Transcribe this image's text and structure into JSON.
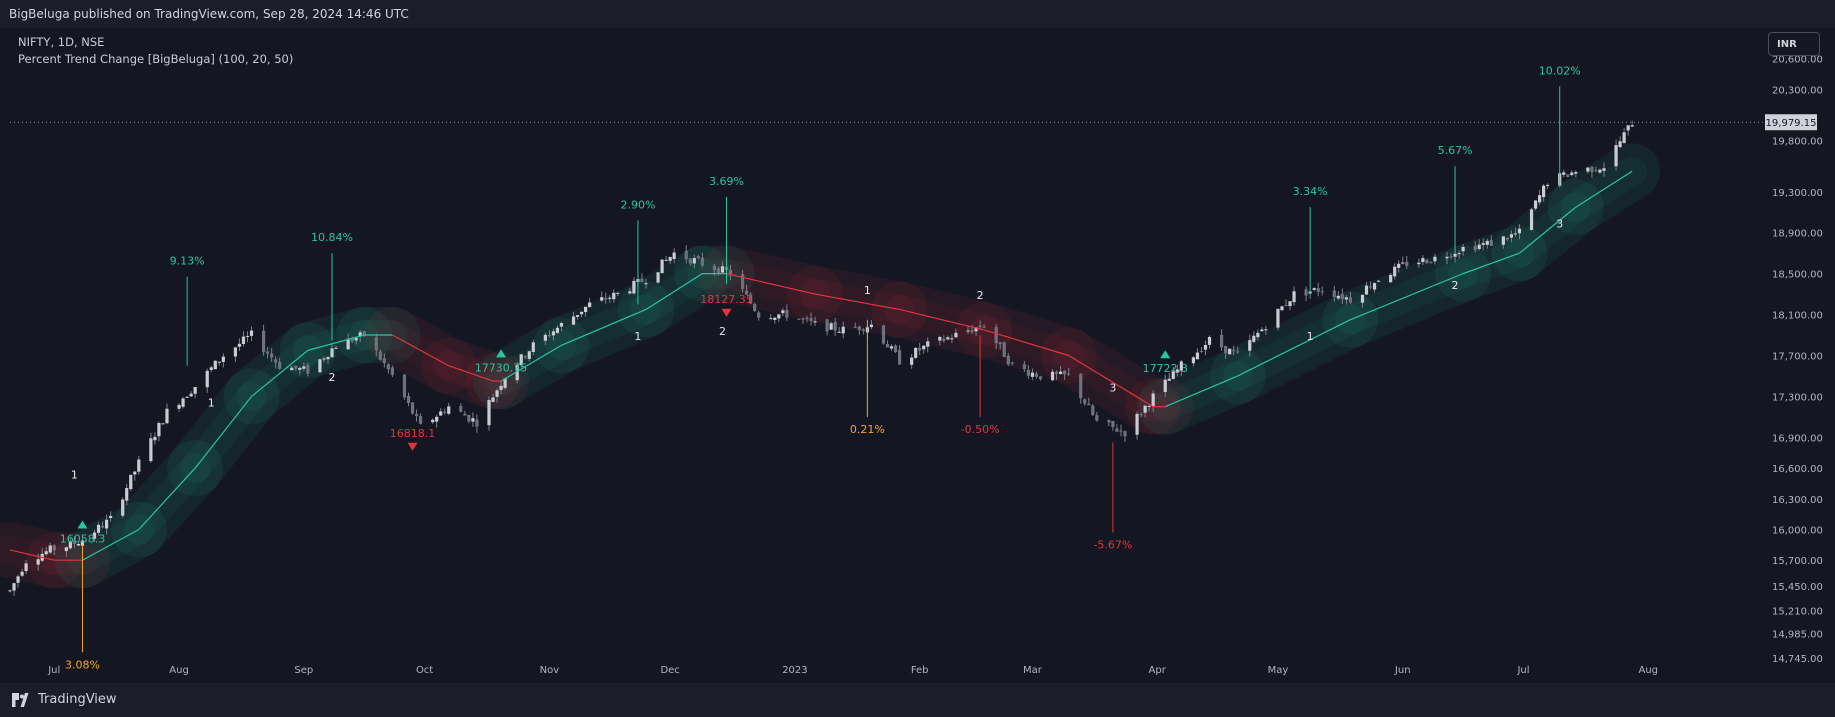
{
  "header": {
    "published_text": "BigBeluga published on TradingView.com, Sep 28, 2024 14:46 UTC"
  },
  "legend": {
    "symbol_line": "NIFTY, 1D, NSE",
    "indicator_line": "Percent Trend Change [BigBeluga] (100, 20, 50)"
  },
  "currency_button": "INR",
  "footer": {
    "brand": "TradingView"
  },
  "colors": {
    "background": "#141722",
    "bull": "#26c6a0",
    "bear": "#e0353d",
    "neutral_label": "#f5a623",
    "candle": "#9a9ea8",
    "text": "#d1d4dc"
  },
  "chart_data": {
    "type": "candlestick",
    "title": "NIFTY, 1D, NSE",
    "ylim": [
      14500,
      20900
    ],
    "xlim": [
      "2022-06-20",
      "2023-08-30"
    ],
    "yticks": [
      "20,600.00",
      "20,300.00",
      "19,800.00",
      "19,300.00",
      "18,900.00",
      "18,500.00",
      "18,100.00",
      "17,700.00",
      "17,300.00",
      "16,900.00",
      "16,600.00",
      "16,300.00",
      "16,000.00",
      "15,700.00",
      "15,450.00",
      "15,210.00",
      "14,985.00",
      "14,745.00"
    ],
    "xticks": [
      {
        "label": "Jul",
        "date": "2022-07-01"
      },
      {
        "label": "Aug",
        "date": "2022-08-01"
      },
      {
        "label": "Sep",
        "date": "2022-09-01"
      },
      {
        "label": "Oct",
        "date": "2022-10-01"
      },
      {
        "label": "Nov",
        "date": "2022-11-01"
      },
      {
        "label": "Dec",
        "date": "2022-12-01"
      },
      {
        "label": "2023",
        "date": "2023-01-01"
      },
      {
        "label": "Feb",
        "date": "2023-02-01"
      },
      {
        "label": "Mar",
        "date": "2023-03-01"
      },
      {
        "label": "Apr",
        "date": "2023-04-01"
      },
      {
        "label": "May",
        "date": "2023-05-01"
      },
      {
        "label": "Jun",
        "date": "2023-06-01"
      },
      {
        "label": "Jul",
        "date": "2023-07-01"
      },
      {
        "label": "Aug",
        "date": "2023-08-01"
      }
    ],
    "last_price": {
      "label": "19,979.15",
      "value": 19979.15
    },
    "price_path": [
      [
        "2022-06-20",
        15400
      ],
      [
        "2022-06-24",
        15700
      ],
      [
        "2022-06-30",
        15800
      ],
      [
        "2022-07-05",
        15850
      ],
      [
        "2022-07-08",
        15900
      ],
      [
        "2022-07-15",
        16100
      ],
      [
        "2022-07-22",
        16650
      ],
      [
        "2022-07-29",
        17150
      ],
      [
        "2022-08-05",
        17400
      ],
      [
        "2022-08-12",
        17700
      ],
      [
        "2022-08-19",
        17900
      ],
      [
        "2022-08-26",
        17600
      ],
      [
        "2022-09-02",
        17550
      ],
      [
        "2022-09-09",
        17800
      ],
      [
        "2022-09-16",
        17900
      ],
      [
        "2022-09-23",
        17500
      ],
      [
        "2022-09-30",
        17000
      ],
      [
        "2022-10-07",
        17200
      ],
      [
        "2022-10-14",
        17050
      ],
      [
        "2022-10-21",
        17500
      ],
      [
        "2022-10-28",
        17800
      ],
      [
        "2022-11-04",
        18000
      ],
      [
        "2022-11-11",
        18200
      ],
      [
        "2022-11-18",
        18300
      ],
      [
        "2022-11-25",
        18450
      ],
      [
        "2022-12-02",
        18700
      ],
      [
        "2022-12-09",
        18600
      ],
      [
        "2022-12-16",
        18500
      ],
      [
        "2022-12-23",
        18100
      ],
      [
        "2022-12-30",
        18100
      ],
      [
        "2023-01-06",
        18000
      ],
      [
        "2023-01-13",
        17950
      ],
      [
        "2023-01-20",
        18000
      ],
      [
        "2023-01-27",
        17650
      ],
      [
        "2023-02-03",
        17800
      ],
      [
        "2023-02-10",
        17900
      ],
      [
        "2023-02-17",
        18000
      ],
      [
        "2023-02-24",
        17600
      ],
      [
        "2023-03-03",
        17500
      ],
      [
        "2023-03-10",
        17500
      ],
      [
        "2023-03-17",
        17050
      ],
      [
        "2023-03-24",
        16950
      ],
      [
        "2023-03-31",
        17300
      ],
      [
        "2023-04-07",
        17600
      ],
      [
        "2023-04-14",
        17850
      ],
      [
        "2023-04-21",
        17700
      ],
      [
        "2023-04-28",
        18000
      ],
      [
        "2023-05-05",
        18300
      ],
      [
        "2023-05-12",
        18350
      ],
      [
        "2023-05-19",
        18250
      ],
      [
        "2023-05-26",
        18450
      ],
      [
        "2023-06-02",
        18600
      ],
      [
        "2023-06-09",
        18650
      ],
      [
        "2023-06-16",
        18750
      ],
      [
        "2023-06-23",
        18800
      ],
      [
        "2023-06-30",
        18900
      ],
      [
        "2023-07-07",
        19400
      ],
      [
        "2023-07-14",
        19500
      ],
      [
        "2023-07-21",
        19550
      ],
      [
        "2023-07-28",
        19979
      ]
    ],
    "trend_line": [
      {
        "date": "2022-06-20",
        "value": 15800,
        "trend": "bear"
      },
      {
        "date": "2022-07-01",
        "value": 15700,
        "trend": "bear"
      },
      {
        "date": "2022-07-08",
        "value": 15700,
        "trend": "bull"
      },
      {
        "date": "2022-07-22",
        "value": 16000,
        "trend": "bull"
      },
      {
        "date": "2022-08-05",
        "value": 16600,
        "trend": "bull"
      },
      {
        "date": "2022-08-19",
        "value": 17300,
        "trend": "bull"
      },
      {
        "date": "2022-09-02",
        "value": 17750,
        "trend": "bull"
      },
      {
        "date": "2022-09-16",
        "value": 17900,
        "trend": "bull"
      },
      {
        "date": "2022-09-23",
        "value": 17900,
        "trend": "bear"
      },
      {
        "date": "2022-10-07",
        "value": 17600,
        "trend": "bear"
      },
      {
        "date": "2022-10-18",
        "value": 17450,
        "trend": "bear"
      },
      {
        "date": "2022-10-20",
        "value": 17450,
        "trend": "bull"
      },
      {
        "date": "2022-11-04",
        "value": 17800,
        "trend": "bull"
      },
      {
        "date": "2022-11-25",
        "value": 18150,
        "trend": "bull"
      },
      {
        "date": "2022-12-09",
        "value": 18500,
        "trend": "bull"
      },
      {
        "date": "2022-12-15",
        "value": 18500,
        "trend": "bear"
      },
      {
        "date": "2023-01-06",
        "value": 18300,
        "trend": "bear"
      },
      {
        "date": "2023-01-27",
        "value": 18150,
        "trend": "bear"
      },
      {
        "date": "2023-02-17",
        "value": 17950,
        "trend": "bear"
      },
      {
        "date": "2023-03-10",
        "value": 17700,
        "trend": "bear"
      },
      {
        "date": "2023-03-31",
        "value": 17200,
        "trend": "bear"
      },
      {
        "date": "2023-04-03",
        "value": 17200,
        "trend": "bull"
      },
      {
        "date": "2023-04-21",
        "value": 17500,
        "trend": "bull"
      },
      {
        "date": "2023-05-19",
        "value": 18050,
        "trend": "bull"
      },
      {
        "date": "2023-06-16",
        "value": 18500,
        "trend": "bull"
      },
      {
        "date": "2023-06-30",
        "value": 18700,
        "trend": "bull"
      },
      {
        "date": "2023-07-14",
        "value": 19150,
        "trend": "bull"
      },
      {
        "date": "2023-07-28",
        "value": 19500,
        "trend": "bull"
      }
    ],
    "signals": [
      {
        "kind": "buy",
        "date": "2022-07-08",
        "value": 16058.3,
        "label": "16058.3"
      },
      {
        "kind": "sell",
        "date": "2022-09-28",
        "value": 16818.1,
        "label": "16818.1"
      },
      {
        "kind": "buy",
        "date": "2022-10-20",
        "value": 17730.75,
        "label": "17730.75"
      },
      {
        "kind": "sell",
        "date": "2022-12-15",
        "value": 18127.35,
        "label": "18127.35"
      },
      {
        "kind": "buy",
        "date": "2023-04-03",
        "value": 17722.3,
        "label": "17722.3"
      }
    ],
    "percent_markers": [
      {
        "date": "2022-07-08",
        "anchor": 15850,
        "end": 14800,
        "label": "3.08%",
        "color": "neutral"
      },
      {
        "date": "2022-08-03",
        "anchor": 17600,
        "end": 18470,
        "label": "9.13%",
        "color": "bull"
      },
      {
        "date": "2022-09-08",
        "anchor": 17850,
        "end": 18700,
        "label": "10.84%",
        "color": "bull"
      },
      {
        "date": "2022-11-23",
        "anchor": 18200,
        "end": 19020,
        "label": "2.90%",
        "color": "bull"
      },
      {
        "date": "2022-12-15",
        "anchor": 18400,
        "end": 19250,
        "label": "3.69%",
        "color": "bull"
      },
      {
        "date": "2023-01-19",
        "anchor": 18050,
        "end": 17100,
        "label": "0.21%",
        "color": "neutral"
      },
      {
        "date": "2023-02-16",
        "anchor": 17900,
        "end": 17100,
        "label": "-0.50%",
        "color": "bear"
      },
      {
        "date": "2023-03-21",
        "anchor": 16850,
        "end": 15970,
        "label": "-5.67%",
        "color": "bear"
      },
      {
        "date": "2023-05-09",
        "anchor": 18300,
        "end": 19150,
        "label": "3.34%",
        "color": "bull"
      },
      {
        "date": "2023-06-14",
        "anchor": 18700,
        "end": 19550,
        "label": "5.67%",
        "color": "bull"
      },
      {
        "date": "2023-07-10",
        "anchor": 19350,
        "end": 20330,
        "label": "10.02%",
        "color": "bull"
      }
    ],
    "count_labels": [
      {
        "date": "2022-07-06",
        "value": 16500,
        "label": "1"
      },
      {
        "date": "2022-08-09",
        "value": 17200,
        "label": "1"
      },
      {
        "date": "2022-09-08",
        "value": 17450,
        "label": "2"
      },
      {
        "date": "2022-11-23",
        "value": 17850,
        "label": "1"
      },
      {
        "date": "2022-12-14",
        "value": 17900,
        "label": "2"
      },
      {
        "date": "2023-01-19",
        "value": 18300,
        "label": "1"
      },
      {
        "date": "2023-02-16",
        "value": 18250,
        "label": "2"
      },
      {
        "date": "2023-03-21",
        "value": 17350,
        "label": "3"
      },
      {
        "date": "2023-05-09",
        "value": 17850,
        "label": "1"
      },
      {
        "date": "2023-06-14",
        "value": 18350,
        "label": "2"
      },
      {
        "date": "2023-07-10",
        "value": 18950,
        "label": "3"
      }
    ]
  }
}
